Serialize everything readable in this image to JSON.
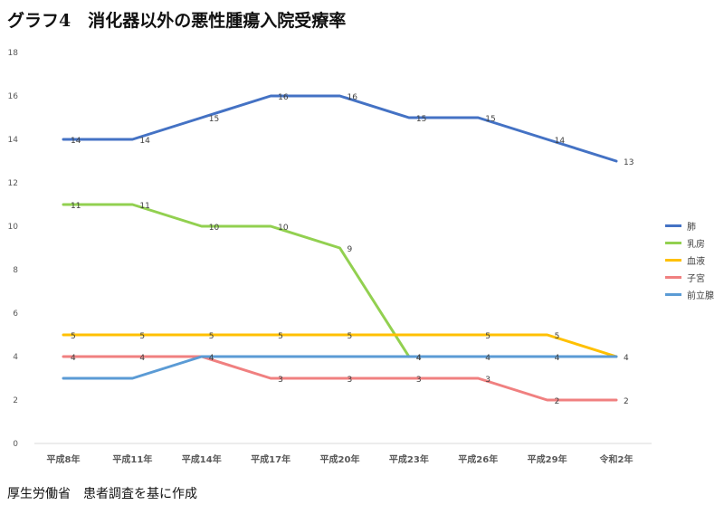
{
  "title": "グラフ4　消化器以外の悪性腫瘍入院受療率",
  "source": "厚生労働省　患者調査を基に作成",
  "chart_data": {
    "type": "line",
    "categories": [
      "平成8年",
      "平成11年",
      "平成14年",
      "平成17年",
      "平成20年",
      "平成23年",
      "平成26年",
      "平成29年",
      "令和2年"
    ],
    "ylim": [
      0,
      18
    ],
    "yticks": [
      0,
      2,
      4,
      6,
      8,
      10,
      12,
      14,
      16,
      18
    ],
    "grid": false,
    "legend_position": "right",
    "series": [
      {
        "name": "肺",
        "color": "#4472C4",
        "values": [
          14,
          14,
          15,
          16,
          16,
          15,
          15,
          14,
          13
        ]
      },
      {
        "name": "乳房",
        "color": "#92D050",
        "values": [
          11,
          11,
          10,
          10,
          9,
          4,
          null,
          null,
          null
        ]
      },
      {
        "name": "血液",
        "color": "#FFC000",
        "values": [
          5,
          5,
          5,
          5,
          5,
          5,
          5,
          5,
          4
        ]
      },
      {
        "name": "子宮",
        "color": "#F08080",
        "values": [
          4,
          4,
          4,
          3,
          3,
          3,
          3,
          2,
          2
        ]
      },
      {
        "name": "前立腺",
        "color": "#5B9BD5",
        "values": [
          3,
          3,
          4,
          4,
          4,
          4,
          4,
          4,
          4
        ]
      }
    ],
    "data_labels": [
      {
        "series": 0,
        "labels": [
          true,
          true,
          true,
          true,
          true,
          true,
          true,
          true,
          true
        ]
      },
      {
        "series": 1,
        "labels": [
          true,
          true,
          true,
          true,
          true,
          true,
          false,
          false,
          false
        ]
      },
      {
        "series": 2,
        "labels": [
          true,
          true,
          true,
          true,
          true,
          false,
          true,
          true,
          true
        ]
      },
      {
        "series": 3,
        "labels": [
          true,
          true,
          false,
          true,
          true,
          true,
          true,
          true,
          true
        ]
      },
      {
        "series": 4,
        "labels": [
          false,
          false,
          true,
          false,
          false,
          true,
          true,
          true,
          false
        ]
      }
    ]
  }
}
